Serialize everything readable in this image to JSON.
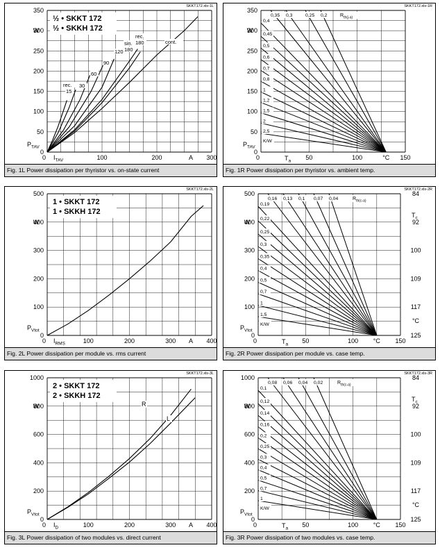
{
  "chart_data": [
    {
      "id": "fig1L",
      "type": "line",
      "file_id": "SKKT172.xls-1L",
      "caption": "Fig. 1L Power dissipation per thyristor vs. on-state current",
      "legend": [
        "½ • SKKT 172",
        "½ • SKKH 172"
      ],
      "xlabel": "I",
      "xlabel_sub": "TAV",
      "xunit": "A",
      "ylabel": "P",
      "ylabel_sub": "TAV",
      "yunit": "W",
      "xlim": [
        0,
        300
      ],
      "ylim": [
        0,
        350
      ],
      "x_ticks": [
        0,
        100,
        200,
        300
      ],
      "y_ticks": [
        0,
        50,
        100,
        150,
        200,
        250,
        300,
        350
      ],
      "series": [
        {
          "name": "rec. 15",
          "x": [
            0,
            10,
            20,
            30,
            36
          ],
          "y": [
            0,
            30,
            64,
            104,
            128
          ]
        },
        {
          "name": "30",
          "x": [
            0,
            20,
            40,
            52
          ],
          "y": [
            0,
            48,
            110,
            154
          ]
        },
        {
          "name": "60",
          "x": [
            0,
            30,
            60,
            78
          ],
          "y": [
            0,
            55,
            130,
            190
          ]
        },
        {
          "name": "90",
          "x": [
            0,
            40,
            80,
            102
          ],
          "y": [
            0,
            62,
            150,
            215
          ]
        },
        {
          "name": "120",
          "x": [
            0,
            50,
            100,
            122
          ],
          "y": [
            0,
            65,
            160,
            230
          ]
        },
        {
          "name": "sin. 180",
          "x": [
            0,
            50,
            100,
            150,
            165
          ],
          "y": [
            0,
            55,
            130,
            225,
            255
          ]
        },
        {
          "name": "rec. 180",
          "x": [
            0,
            50,
            100,
            150,
            170
          ],
          "y": [
            0,
            52,
            122,
            208,
            248
          ]
        },
        {
          "name": "cont.",
          "x": [
            0,
            50,
            100,
            150,
            200,
            250,
            275
          ],
          "y": [
            0,
            48,
            108,
            172,
            240,
            300,
            335
          ]
        }
      ]
    },
    {
      "id": "fig1R",
      "type": "line",
      "file_id": "SKKT172.xls-1R",
      "caption": "Fig. 1R Power dissipation per thyristor vs. ambient temp.",
      "xlabel": "T",
      "xlabel_sub": "a",
      "xunit": "°C",
      "ylabel": "P",
      "ylabel_sub": "TAV",
      "yunit": "W",
      "rlabel": "R",
      "rlabel_sub": "th(j-a)",
      "rlabel_unit": "K/W",
      "xlim": [
        0,
        150
      ],
      "ylim": [
        0,
        350
      ],
      "x_ticks": [
        0,
        50,
        100,
        150
      ],
      "y_ticks": [
        0,
        50,
        100,
        150,
        200,
        250,
        300,
        350
      ],
      "tj_max": 130,
      "r_values": [
        "0,35",
        "0,3",
        "0,25",
        "0,2",
        "0,4",
        "0,45",
        "0,5",
        "0,6",
        "0,7",
        "0,8",
        "1",
        "1,2",
        "1,5",
        "2",
        "2,5"
      ]
    },
    {
      "id": "fig2L",
      "type": "line",
      "file_id": "SKKT172.xls-2L",
      "caption": "Fig. 2L Power dissipation per module vs. rms current",
      "legend": [
        "1 • SKKT 172",
        "1 • SKKH 172"
      ],
      "xlabel": "I",
      "xlabel_sub": "RMS",
      "xunit": "A",
      "ylabel": "P",
      "ylabel_sub": "Vtot",
      "yunit": "W",
      "xlim": [
        0,
        400
      ],
      "ylim": [
        0,
        500
      ],
      "x_ticks": [
        0,
        100,
        200,
        300,
        400
      ],
      "y_ticks": [
        0,
        100,
        200,
        300,
        400,
        500
      ],
      "series": [
        {
          "name": "",
          "x": [
            0,
            50,
            100,
            150,
            200,
            250,
            300,
            350,
            380
          ],
          "y": [
            0,
            40,
            88,
            142,
            200,
            262,
            330,
            420,
            458
          ]
        }
      ]
    },
    {
      "id": "fig2R",
      "type": "line",
      "file_id": "SKKT172.xls-2R",
      "caption": "Fig. 2R Power dissipation per module vs. case temp.",
      "xlabel": "T",
      "xlabel_sub": "a",
      "xunit": "°C",
      "ylabel": "P",
      "ylabel_sub": "Vtot",
      "yunit": "W",
      "rlabel": "R",
      "rlabel_sub": "th(c-a)",
      "rlabel_unit": "K/W",
      "right_axis_label": "T",
      "right_axis_sub": "c",
      "right_axis_unit": "°C",
      "right_ticks": [
        "84",
        "92",
        "100",
        "109",
        "117",
        "125"
      ],
      "xlim": [
        0,
        150
      ],
      "ylim": [
        0,
        500
      ],
      "x_ticks": [
        0,
        50,
        100,
        150
      ],
      "y_ticks": [
        0,
        100,
        200,
        300,
        400,
        500
      ],
      "tj_max": 125,
      "r_values": [
        "0,16",
        "0,13",
        "0,1",
        "0,07",
        "0,04",
        "0,19",
        "0,22",
        "0,25",
        "0,3",
        "0,35",
        "0,4",
        "0,5",
        "0,7",
        "1",
        "1,5"
      ]
    },
    {
      "id": "fig3L",
      "type": "line",
      "file_id": "SKKT172.xls-3L",
      "caption": "Fig. 3L Power dissipation of two modules vs. direct current",
      "legend": [
        "2 • SKKT 172",
        "2 • SKKH 172"
      ],
      "xlabel": "I",
      "xlabel_sub": "D",
      "xunit": "A",
      "ylabel": "P",
      "ylabel_sub": "Vtot",
      "yunit": "W",
      "xlim": [
        0,
        400
      ],
      "ylim": [
        0,
        1000
      ],
      "x_ticks": [
        0,
        100,
        200,
        300,
        400
      ],
      "y_ticks": [
        0,
        200,
        400,
        600,
        800,
        1000
      ],
      "series": [
        {
          "name": "R",
          "x": [
            0,
            50,
            100,
            150,
            200,
            250,
            300,
            350
          ],
          "y": [
            0,
            88,
            190,
            305,
            430,
            570,
            735,
            920
          ]
        },
        {
          "name": "L",
          "x": [
            0,
            50,
            100,
            150,
            200,
            250,
            300,
            360
          ],
          "y": [
            0,
            85,
            180,
            290,
            405,
            535,
            680,
            860
          ]
        }
      ]
    },
    {
      "id": "fig3R",
      "type": "line",
      "file_id": "SKKT172.xls-3R",
      "caption": "Fig. 3R Power dissipation of two modules vs. case temp.",
      "xlabel": "T",
      "xlabel_sub": "a",
      "xunit": "°C",
      "ylabel": "P",
      "ylabel_sub": "Vtot",
      "yunit": "W",
      "rlabel": "R",
      "rlabel_sub": "th(c-a)",
      "rlabel_unit": "K/W",
      "right_axis_label": "T",
      "right_axis_sub": "c",
      "right_axis_unit": "°C",
      "right_ticks": [
        "84",
        "92",
        "100",
        "109",
        "117",
        "125"
      ],
      "xlim": [
        0,
        150
      ],
      "ylim": [
        0,
        1000
      ],
      "x_ticks": [
        0,
        50,
        100,
        150
      ],
      "y_ticks": [
        0,
        200,
        400,
        600,
        800,
        1000
      ],
      "tj_max": 125,
      "r_values": [
        "0,08",
        "0,06",
        "0,04",
        "0,02",
        "0,1",
        "0,12",
        "0,14",
        "0,16",
        "0,2",
        "0,25",
        "0,3",
        "0,4",
        "0,5",
        "0,7",
        "1"
      ]
    }
  ]
}
